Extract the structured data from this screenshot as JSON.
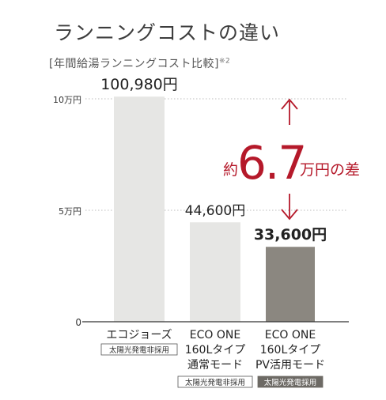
{
  "title": "ランニングコストの違い",
  "subtitle": "[年間給湯ランニングコスト比較]",
  "subtitle_note": "※2",
  "chart_data": {
    "type": "bar",
    "categories": [
      "エコジョーズ",
      "ECO ONE 160Lタイプ 通常モード",
      "ECO ONE 160Lタイプ PV活用モード"
    ],
    "category_lines": [
      [
        "エコジョーズ"
      ],
      [
        "ECO ONE",
        "160Lタイプ",
        "通常モード"
      ],
      [
        "ECO ONE",
        "160Lタイプ",
        "PV活用モード"
      ]
    ],
    "values": [
      100980,
      44600,
      33600
    ],
    "value_labels": [
      "100,980円",
      "44,600円",
      "33,600円"
    ],
    "tags": [
      "太陽光発電非採用",
      "太陽光発電非採用",
      "太陽光発電採用"
    ],
    "bar_colors": [
      "#e6e6e4",
      "#e6e6e4",
      "#8b8780"
    ],
    "yticks": [
      0,
      50000,
      100000
    ],
    "ytick_labels": [
      "0",
      "5万円",
      "10万円"
    ],
    "ylim": [
      0,
      100000
    ],
    "grid": true,
    "annotation": {
      "prefix": "約",
      "number": "6.7",
      "suffix": "万円の差",
      "color": "#b5192a"
    }
  }
}
